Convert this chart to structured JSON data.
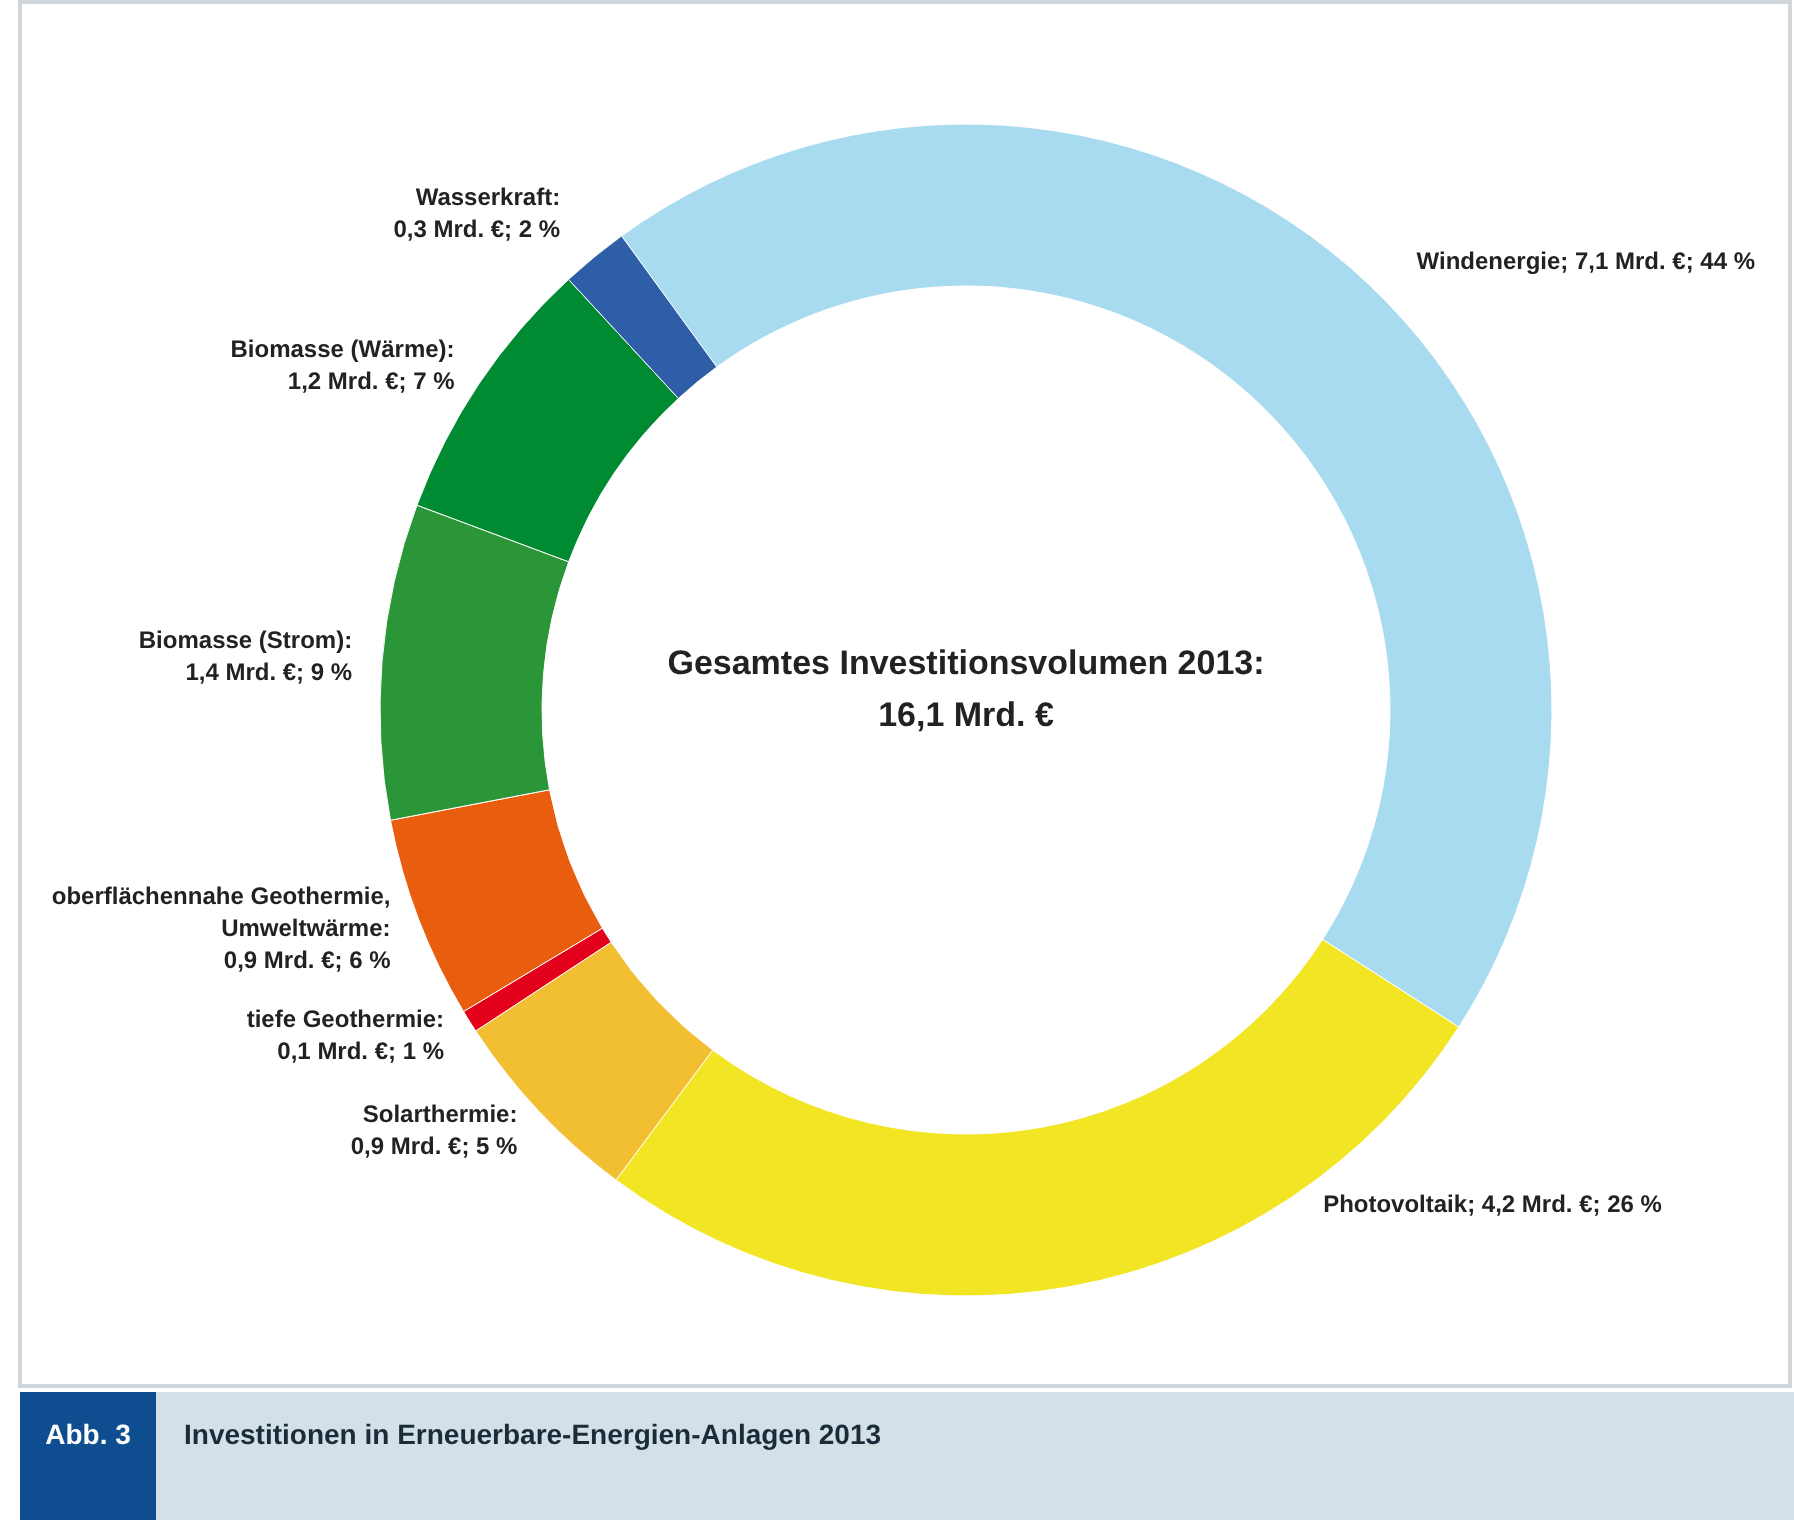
{
  "chart_data": {
    "type": "donut",
    "title": "Investitionen in Erneuerbare-Energien-Anlagen 2013",
    "annotations": [
      "Abb. 3",
      "Gesamtes Investitionsvolumen 2013:",
      "16,1 Mrd. €"
    ],
    "values": [
      7.1,
      4.2,
      0.9,
      0.1,
      0.9,
      1.4,
      1.2,
      0.3
    ],
    "value_labels": [
      "Windenergie; 7,1 Mrd. €; 44 %",
      "Photovoltaik; 4,2 Mrd. €; 26 %",
      "Solarthermie: 0,9 Mrd. €; 5 %",
      "tiefe Geothermie: 0,1 Mrd. €; 1 %",
      "oberflächennahe Geothermie, Umweltwärme: 0,9 Mrd. €; 6 %",
      "Biomasse (Strom): 1,4 Mrd. €; 9 %",
      "Biomasse (Wärme): 1,2 Mrd. €; 7 %",
      "Wasserkraft: 0,3 Mrd. €; 2 %"
    ],
    "colors": [
      "#a9dbf0",
      "#f2e524",
      "#f2bf33",
      "#e3001b",
      "#e95d0f",
      "#2a9637",
      "#008a32",
      "#2f5ea8"
    ]
  }
}
